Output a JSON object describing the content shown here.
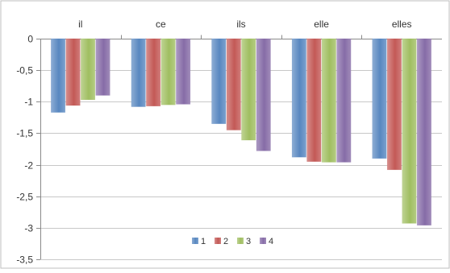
{
  "chart_data": {
    "type": "bar",
    "categories": [
      "il",
      "ce",
      "ils",
      "elle",
      "elles"
    ],
    "series": [
      {
        "name": "1",
        "values": [
          -1.17,
          -1.08,
          -1.35,
          -1.88,
          -1.9
        ],
        "color": "#4f81bd"
      },
      {
        "name": "2",
        "values": [
          -1.06,
          -1.07,
          -1.45,
          -1.95,
          -2.08
        ],
        "color": "#c0504d"
      },
      {
        "name": "3",
        "values": [
          -0.97,
          -1.05,
          -1.61,
          -1.96,
          -2.93
        ],
        "color": "#9bbb59"
      },
      {
        "name": "4",
        "values": [
          -0.9,
          -1.04,
          -1.78,
          -1.96,
          -2.96
        ],
        "color": "#8064a2"
      }
    ],
    "ylim": [
      -3.5,
      0
    ],
    "yticks": [
      0,
      -0.5,
      -1,
      -1.5,
      -2,
      -2.5,
      -3,
      -3.5
    ],
    "ytick_labels": [
      "0",
      "-0,5",
      "-1",
      "-1,5",
      "-2",
      "-2,5",
      "-3",
      "-3,5"
    ],
    "grid": true,
    "category_labels_position": "top",
    "legend": {
      "placement": "bottom-center",
      "items": [
        "1",
        "2",
        "3",
        "4"
      ]
    },
    "title": "",
    "xlabel": "",
    "ylabel": ""
  }
}
